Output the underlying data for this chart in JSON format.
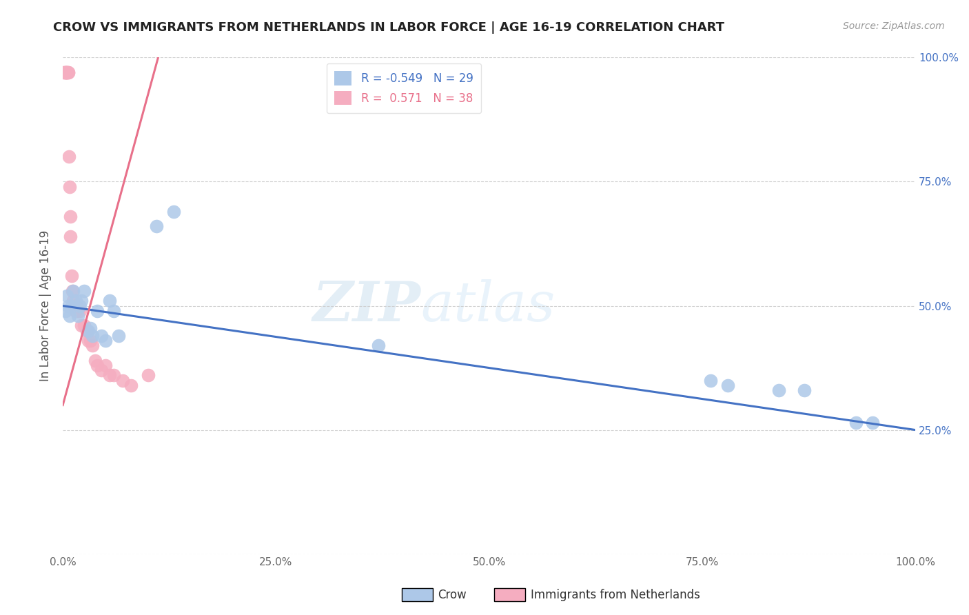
{
  "title": "CROW VS IMMIGRANTS FROM NETHERLANDS IN LABOR FORCE | AGE 16-19 CORRELATION CHART",
  "source": "Source: ZipAtlas.com",
  "ylabel": "In Labor Force | Age 16-19",
  "xlim": [
    0.0,
    1.0
  ],
  "ylim": [
    0.0,
    1.0
  ],
  "xticks": [
    0.0,
    0.25,
    0.5,
    0.75,
    1.0
  ],
  "xticklabels": [
    "0.0%",
    "25.0%",
    "50.0%",
    "75.0%",
    "100.0%"
  ],
  "right_yticklabels": [
    "100.0%",
    "75.0%",
    "50.0%",
    "25.0%"
  ],
  "right_yticks": [
    1.0,
    0.75,
    0.5,
    0.25
  ],
  "legend_r1": "R = -0.549",
  "legend_n1": "N = 29",
  "legend_r2": "R =  0.571",
  "legend_n2": "N = 38",
  "crow_color": "#adc8e8",
  "netherlands_color": "#f5adc0",
  "crow_line_color": "#4472c4",
  "netherlands_line_color": "#e8708a",
  "watermark_zip": "ZIP",
  "watermark_atlas": "atlas",
  "crow_points_x": [
    0.003,
    0.005,
    0.006,
    0.008,
    0.01,
    0.012,
    0.015,
    0.018,
    0.02,
    0.022,
    0.025,
    0.03,
    0.032,
    0.035,
    0.04,
    0.045,
    0.05,
    0.055,
    0.06,
    0.065,
    0.11,
    0.13,
    0.37,
    0.76,
    0.78,
    0.84,
    0.87,
    0.93,
    0.95
  ],
  "crow_points_y": [
    0.49,
    0.52,
    0.5,
    0.48,
    0.5,
    0.53,
    0.51,
    0.48,
    0.5,
    0.51,
    0.53,
    0.45,
    0.455,
    0.44,
    0.49,
    0.44,
    0.43,
    0.51,
    0.49,
    0.44,
    0.66,
    0.69,
    0.42,
    0.35,
    0.34,
    0.33,
    0.33,
    0.265,
    0.265
  ],
  "netherlands_points_x": [
    0.001,
    0.002,
    0.003,
    0.003,
    0.004,
    0.004,
    0.005,
    0.005,
    0.006,
    0.006,
    0.007,
    0.008,
    0.009,
    0.009,
    0.01,
    0.011,
    0.012,
    0.013,
    0.014,
    0.015,
    0.016,
    0.018,
    0.02,
    0.022,
    0.025,
    0.028,
    0.03,
    0.032,
    0.035,
    0.038,
    0.04,
    0.045,
    0.05,
    0.055,
    0.06,
    0.07,
    0.08,
    0.1
  ],
  "netherlands_points_y": [
    0.97,
    0.97,
    0.97,
    0.97,
    0.97,
    0.97,
    0.97,
    0.97,
    0.97,
    0.97,
    0.8,
    0.74,
    0.68,
    0.64,
    0.56,
    0.53,
    0.51,
    0.5,
    0.5,
    0.49,
    0.5,
    0.49,
    0.49,
    0.46,
    0.46,
    0.45,
    0.43,
    0.43,
    0.42,
    0.39,
    0.38,
    0.37,
    0.38,
    0.36,
    0.36,
    0.35,
    0.34,
    0.36
  ],
  "crow_trend_x": [
    0.0,
    1.0
  ],
  "crow_trend_y": [
    0.5,
    0.25
  ],
  "netherlands_trend_x": [
    0.0,
    0.115
  ],
  "netherlands_trend_y": [
    0.3,
    1.02
  ]
}
